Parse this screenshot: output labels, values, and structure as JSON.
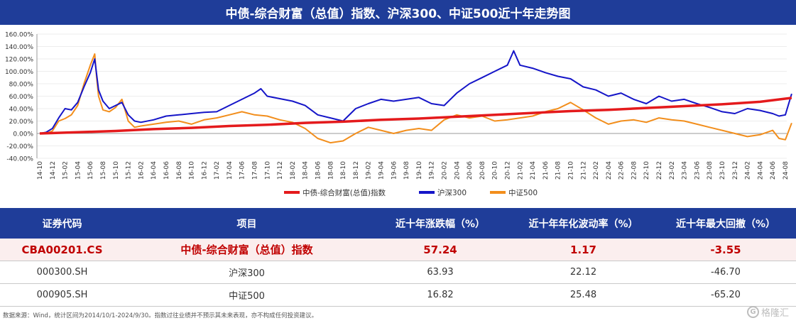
{
  "title": "中债-综合财富（总值）指数、沪深300、中证500近十年走势图",
  "chart_data": {
    "type": "line",
    "ylim": [
      -40,
      160
    ],
    "yticks": [
      "160.00%",
      "140.00%",
      "120.00%",
      "100.00%",
      "80.00%",
      "60.00%",
      "40.00%",
      "20.00%",
      "0.00%",
      "-20.00%",
      "-40.00%"
    ],
    "yvals": [
      160,
      140,
      120,
      100,
      80,
      60,
      40,
      20,
      0,
      -20,
      -40
    ],
    "xticks": [
      "14-10",
      "14-12",
      "15-02",
      "15-04",
      "15-06",
      "15-08",
      "15-10",
      "15-12",
      "16-02",
      "16-04",
      "16-06",
      "16-08",
      "16-10",
      "16-12",
      "17-02",
      "17-04",
      "17-06",
      "17-08",
      "17-10",
      "17-12",
      "18-02",
      "18-04",
      "18-06",
      "18-08",
      "18-10",
      "18-12",
      "19-02",
      "19-04",
      "19-06",
      "19-08",
      "19-10",
      "19-12",
      "20-02",
      "20-04",
      "20-06",
      "20-08",
      "20-10",
      "20-12",
      "21-02",
      "21-04",
      "21-06",
      "21-08",
      "21-10",
      "21-12",
      "22-02",
      "22-04",
      "22-06",
      "22-08",
      "22-10",
      "22-12",
      "23-02",
      "23-04",
      "23-06",
      "23-08",
      "23-10",
      "23-12",
      "24-02",
      "24-04",
      "24-06",
      "24-08"
    ],
    "series": [
      {
        "name": "中债-综合财富(总值)指数",
        "color": "#e41a1c",
        "points": [
          [
            0,
            0
          ],
          [
            6,
            2
          ],
          [
            12,
            4
          ],
          [
            18,
            7
          ],
          [
            24,
            9
          ],
          [
            30,
            12
          ],
          [
            36,
            14
          ],
          [
            42,
            17
          ],
          [
            48,
            19
          ],
          [
            54,
            22
          ],
          [
            60,
            24
          ],
          [
            66,
            27
          ],
          [
            72,
            30
          ],
          [
            78,
            33
          ],
          [
            84,
            36
          ],
          [
            90,
            38
          ],
          [
            96,
            41
          ],
          [
            102,
            44
          ],
          [
            108,
            47
          ],
          [
            114,
            51
          ],
          [
            119,
            57.24
          ]
        ]
      },
      {
        "name": "沪深300",
        "color": "#1515c8",
        "points": [
          [
            0,
            0
          ],
          [
            1,
            2
          ],
          [
            2,
            8
          ],
          [
            3,
            25
          ],
          [
            4,
            40
          ],
          [
            5,
            38
          ],
          [
            6,
            50
          ],
          [
            7,
            75
          ],
          [
            8,
            98
          ],
          [
            8.7,
            120
          ],
          [
            9,
            95
          ],
          [
            9.3,
            70
          ],
          [
            10,
            52
          ],
          [
            11,
            40
          ],
          [
            12,
            45
          ],
          [
            13,
            50
          ],
          [
            14,
            30
          ],
          [
            15,
            20
          ],
          [
            16,
            18
          ],
          [
            18,
            22
          ],
          [
            20,
            28
          ],
          [
            22,
            30
          ],
          [
            24,
            32
          ],
          [
            26,
            34
          ],
          [
            28,
            35
          ],
          [
            30,
            45
          ],
          [
            32,
            55
          ],
          [
            34,
            65
          ],
          [
            35,
            72
          ],
          [
            36,
            60
          ],
          [
            38,
            56
          ],
          [
            40,
            52
          ],
          [
            42,
            45
          ],
          [
            44,
            30
          ],
          [
            46,
            25
          ],
          [
            48,
            20
          ],
          [
            50,
            40
          ],
          [
            52,
            48
          ],
          [
            54,
            55
          ],
          [
            56,
            52
          ],
          [
            58,
            55
          ],
          [
            60,
            58
          ],
          [
            62,
            48
          ],
          [
            64,
            45
          ],
          [
            66,
            65
          ],
          [
            68,
            80
          ],
          [
            70,
            90
          ],
          [
            72,
            100
          ],
          [
            74,
            110
          ],
          [
            75,
            133
          ],
          [
            76,
            110
          ],
          [
            78,
            105
          ],
          [
            80,
            98
          ],
          [
            82,
            92
          ],
          [
            84,
            88
          ],
          [
            86,
            75
          ],
          [
            88,
            70
          ],
          [
            90,
            60
          ],
          [
            92,
            65
          ],
          [
            94,
            55
          ],
          [
            96,
            48
          ],
          [
            98,
            60
          ],
          [
            100,
            52
          ],
          [
            102,
            55
          ],
          [
            104,
            48
          ],
          [
            106,
            42
          ],
          [
            108,
            35
          ],
          [
            110,
            32
          ],
          [
            112,
            40
          ],
          [
            114,
            37
          ],
          [
            116,
            32
          ],
          [
            117,
            28
          ],
          [
            118,
            30
          ],
          [
            119,
            63.93
          ]
        ]
      },
      {
        "name": "中证500",
        "color": "#f28e1c",
        "points": [
          [
            0,
            0
          ],
          [
            1,
            0
          ],
          [
            2,
            4
          ],
          [
            3,
            20
          ],
          [
            4,
            24
          ],
          [
            5,
            30
          ],
          [
            6,
            45
          ],
          [
            7,
            80
          ],
          [
            8,
            110
          ],
          [
            8.7,
            128
          ],
          [
            9,
            90
          ],
          [
            9.3,
            60
          ],
          [
            10,
            38
          ],
          [
            11,
            35
          ],
          [
            12,
            42
          ],
          [
            13,
            55
          ],
          [
            14,
            20
          ],
          [
            15,
            10
          ],
          [
            16,
            12
          ],
          [
            18,
            15
          ],
          [
            20,
            18
          ],
          [
            22,
            20
          ],
          [
            24,
            15
          ],
          [
            26,
            22
          ],
          [
            28,
            25
          ],
          [
            30,
            30
          ],
          [
            32,
            35
          ],
          [
            34,
            30
          ],
          [
            36,
            28
          ],
          [
            38,
            22
          ],
          [
            40,
            18
          ],
          [
            42,
            8
          ],
          [
            44,
            -8
          ],
          [
            46,
            -15
          ],
          [
            48,
            -12
          ],
          [
            50,
            0
          ],
          [
            52,
            10
          ],
          [
            54,
            5
          ],
          [
            56,
            0
          ],
          [
            58,
            5
          ],
          [
            60,
            8
          ],
          [
            62,
            5
          ],
          [
            64,
            22
          ],
          [
            66,
            30
          ],
          [
            68,
            25
          ],
          [
            70,
            28
          ],
          [
            72,
            20
          ],
          [
            74,
            22
          ],
          [
            76,
            25
          ],
          [
            78,
            28
          ],
          [
            80,
            35
          ],
          [
            82,
            40
          ],
          [
            84,
            50
          ],
          [
            86,
            38
          ],
          [
            88,
            25
          ],
          [
            90,
            15
          ],
          [
            92,
            20
          ],
          [
            94,
            22
          ],
          [
            96,
            18
          ],
          [
            98,
            25
          ],
          [
            100,
            22
          ],
          [
            102,
            20
          ],
          [
            104,
            15
          ],
          [
            106,
            10
          ],
          [
            108,
            5
          ],
          [
            110,
            0
          ],
          [
            112,
            -5
          ],
          [
            114,
            -2
          ],
          [
            116,
            5
          ],
          [
            117,
            -8
          ],
          [
            118,
            -10
          ],
          [
            119,
            16.82
          ]
        ]
      }
    ]
  },
  "legend": {
    "items": [
      {
        "label": "中债-综合财富(总值)指数",
        "color": "#e41a1c"
      },
      {
        "label": "沪深300",
        "color": "#1515c8"
      },
      {
        "label": "中证500",
        "color": "#f28e1c"
      }
    ]
  },
  "table": {
    "headers": [
      "证券代码",
      "项目",
      "近十年涨跌幅（%）",
      "近十年年化波动率（%）",
      "近十年最大回撤（%）"
    ],
    "rows": [
      [
        "CBA00201.CS",
        "中债-综合财富（总值）指数",
        "57.24",
        "1.17",
        "-3.55"
      ],
      [
        "000300.SH",
        "沪深300",
        "63.93",
        "22.12",
        "-46.70"
      ],
      [
        "000905.SH",
        "中证500",
        "16.82",
        "25.48",
        "-65.20"
      ]
    ]
  },
  "footnote": "数据来源：Wind，统计区间为2014/10/1-2024/9/30。指数过往业绩并不预示其未来表现，亦不构成任何投资建议。",
  "watermark": "格隆汇",
  "watermark_icon": "g-logo-icon"
}
